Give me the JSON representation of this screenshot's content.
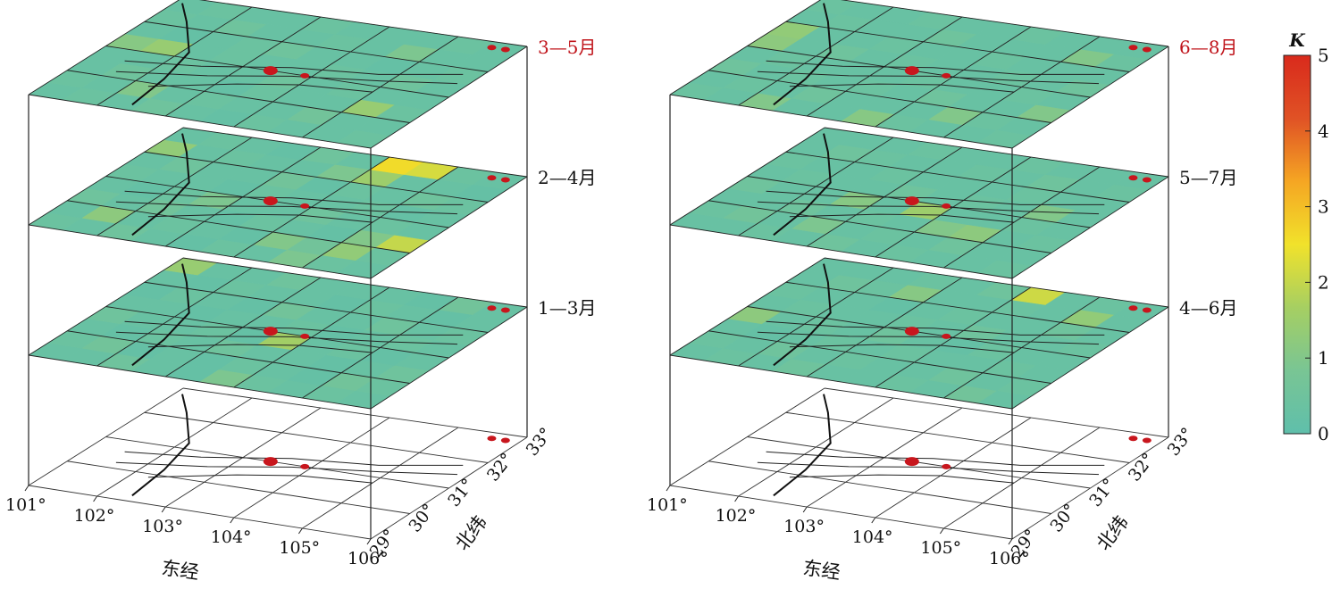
{
  "chart_data": {
    "type": "heatmap",
    "x_axis": {
      "label": "东经",
      "ticks": [
        "101°",
        "102°",
        "103°",
        "104°",
        "105°",
        "106°"
      ],
      "range": [
        101,
        106
      ]
    },
    "y_axis": {
      "label": "北纬",
      "ticks": [
        "29°",
        "30°",
        "31°",
        "32°",
        "33°"
      ],
      "range": [
        29,
        33
      ]
    },
    "colorbar": {
      "title": "K",
      "ticks": [
        "0",
        "1",
        "2",
        "3",
        "4",
        "5"
      ],
      "range": [
        0,
        5
      ],
      "colors": [
        "#5fbfab",
        "#79c594",
        "#a6cf62",
        "#f1e22b",
        "#f5a623",
        "#e05225",
        "#d92a1c"
      ]
    },
    "panels": [
      {
        "label": "1—3月",
        "highlight": false,
        "values": [
          [
            0.3,
            0.3,
            0.5,
            0.3,
            0.2,
            0.9,
            0.4,
            0.3,
            0.4,
            0.3
          ],
          [
            0.4,
            0.6,
            0.2,
            0.3,
            0.2,
            0.4,
            0.3,
            0.2,
            0.6,
            0.4
          ],
          [
            0.3,
            0.2,
            0.4,
            0.3,
            0.5,
            0.3,
            0.3,
            0.2,
            0.3,
            0.5
          ],
          [
            0.5,
            0.3,
            0.3,
            0.4,
            0.2,
            1.6,
            0.3,
            0.4,
            0.2,
            0.3
          ],
          [
            0.3,
            0.3,
            0.2,
            0.3,
            0.3,
            0.4,
            0.2,
            0.3,
            0.4,
            0.3
          ],
          [
            0.2,
            0.4,
            0.3,
            0.2,
            0.6,
            0.3,
            0.3,
            0.5,
            0.3,
            0.4
          ],
          [
            0.3,
            0.2,
            0.4,
            0.3,
            0.3,
            0.2,
            0.4,
            0.3,
            0.2,
            0.3
          ],
          [
            1.4,
            0.3,
            0.3,
            0.5,
            0.3,
            0.3,
            0.3,
            0.2,
            0.6,
            0.3
          ]
        ]
      },
      {
        "label": "2—4月",
        "highlight": false,
        "values": [
          [
            0.4,
            0.3,
            0.5,
            0.3,
            0.2,
            0.4,
            0.3,
            0.9,
            0.4,
            0.3
          ],
          [
            0.3,
            1.2,
            0.3,
            0.4,
            0.3,
            0.2,
            1.0,
            0.6,
            1.3,
            0.4
          ],
          [
            0.5,
            0.3,
            0.6,
            0.3,
            0.2,
            0.4,
            0.3,
            0.2,
            1.0,
            2.0
          ],
          [
            0.3,
            0.2,
            0.4,
            0.9,
            0.3,
            0.3,
            0.5,
            0.3,
            0.4,
            0.3
          ],
          [
            0.4,
            0.3,
            0.3,
            0.2,
            0.4,
            0.3,
            0.3,
            0.4,
            0.2,
            0.3
          ],
          [
            0.3,
            0.5,
            0.3,
            0.3,
            0.6,
            0.2,
            0.4,
            0.3,
            0.5,
            0.4
          ],
          [
            1.3,
            0.3,
            0.4,
            0.3,
            0.3,
            0.9,
            1.5,
            0.3,
            0.3,
            0.2
          ],
          [
            0.3,
            0.4,
            0.3,
            0.2,
            0.5,
            0.3,
            2.6,
            2.2,
            0.4,
            0.3
          ]
        ]
      },
      {
        "label": "3—5月",
        "highlight": true,
        "values": [
          [
            0.3,
            0.4,
            0.3,
            0.5,
            0.3,
            0.2,
            0.4,
            0.3,
            0.3,
            0.4
          ],
          [
            0.4,
            0.3,
            1.0,
            0.3,
            0.4,
            0.3,
            0.3,
            0.6,
            0.3,
            0.3
          ],
          [
            0.3,
            0.5,
            0.3,
            0.3,
            0.2,
            0.4,
            0.3,
            0.3,
            1.4,
            0.4
          ],
          [
            0.3,
            0.3,
            0.4,
            0.3,
            0.3,
            0.5,
            0.3,
            0.4,
            0.3,
            0.3
          ],
          [
            1.1,
            1.4,
            0.3,
            0.4,
            0.3,
            0.3,
            0.4,
            0.3,
            0.5,
            0.3
          ],
          [
            0.3,
            0.2,
            0.3,
            0.4,
            0.5,
            0.3,
            0.3,
            0.2,
            0.3,
            0.4
          ],
          [
            0.4,
            0.3,
            0.5,
            0.3,
            0.3,
            0.4,
            0.3,
            0.9,
            0.3,
            0.3
          ],
          [
            0.3,
            0.4,
            0.3,
            0.3,
            0.4,
            0.3,
            0.3,
            0.3,
            0.4,
            0.3
          ]
        ]
      },
      {
        "label": "4—6月",
        "highlight": false,
        "values": [
          [
            0.3,
            0.4,
            0.3,
            0.5,
            0.3,
            0.3,
            0.4,
            0.3,
            0.6,
            0.3
          ],
          [
            0.4,
            0.3,
            0.5,
            0.3,
            0.4,
            0.3,
            0.3,
            0.5,
            0.3,
            0.4
          ],
          [
            0.3,
            0.2,
            0.3,
            0.4,
            0.3,
            0.4,
            0.3,
            0.3,
            0.4,
            0.3
          ],
          [
            1.2,
            0.3,
            0.4,
            0.3,
            0.5,
            0.3,
            0.2,
            0.4,
            0.3,
            0.3
          ],
          [
            0.3,
            0.4,
            0.3,
            0.3,
            0.4,
            0.3,
            0.5,
            0.3,
            0.3,
            0.4
          ],
          [
            0.4,
            0.3,
            0.3,
            0.2,
            0.3,
            0.4,
            0.3,
            0.3,
            0.5,
            0.3
          ],
          [
            0.3,
            0.5,
            0.4,
            1.1,
            0.3,
            0.3,
            0.4,
            0.3,
            1.3,
            0.3
          ],
          [
            0.3,
            0.3,
            0.3,
            0.4,
            0.3,
            0.5,
            2.1,
            0.3,
            0.4,
            0.3
          ]
        ]
      },
      {
        "label": "5—7月",
        "highlight": false,
        "values": [
          [
            0.3,
            0.3,
            0.4,
            0.3,
            0.5,
            0.3,
            0.4,
            0.3,
            0.3,
            0.4
          ],
          [
            0.4,
            0.6,
            0.3,
            0.9,
            0.3,
            0.4,
            0.3,
            0.5,
            0.3,
            0.3
          ],
          [
            0.3,
            0.3,
            0.5,
            0.3,
            0.4,
            0.3,
            1.0,
            1.2,
            0.3,
            0.4
          ],
          [
            0.5,
            0.3,
            0.3,
            1.1,
            0.3,
            1.5,
            0.3,
            0.3,
            0.4,
            0.3
          ],
          [
            0.3,
            0.4,
            0.3,
            0.3,
            0.5,
            0.3,
            0.4,
            0.3,
            1.0,
            0.3
          ],
          [
            0.4,
            0.3,
            0.3,
            0.4,
            0.3,
            0.3,
            0.3,
            0.4,
            0.3,
            0.3
          ],
          [
            0.3,
            0.5,
            0.4,
            0.3,
            0.3,
            0.4,
            0.3,
            0.5,
            0.3,
            0.4
          ],
          [
            0.3,
            0.3,
            0.3,
            0.4,
            0.3,
            0.3,
            0.4,
            0.3,
            0.3,
            0.3
          ]
        ]
      },
      {
        "label": "6—8月",
        "highlight": true,
        "values": [
          [
            0.4,
            0.3,
            1.0,
            0.3,
            0.3,
            1.1,
            0.4,
            0.3,
            0.3,
            0.4
          ],
          [
            0.3,
            0.4,
            0.3,
            0.5,
            0.3,
            0.3,
            0.3,
            1.0,
            0.4,
            0.3
          ],
          [
            0.5,
            0.3,
            0.4,
            0.3,
            0.4,
            0.3,
            0.5,
            0.3,
            0.3,
            1.0
          ],
          [
            0.3,
            0.4,
            0.3,
            0.3,
            0.3,
            0.4,
            0.3,
            0.3,
            0.4,
            0.3
          ],
          [
            1.2,
            0.3,
            0.5,
            0.3,
            0.4,
            0.3,
            0.3,
            0.4,
            0.3,
            0.5
          ],
          [
            1.3,
            0.3,
            0.3,
            0.4,
            0.3,
            0.3,
            0.4,
            0.3,
            0.3,
            0.3
          ],
          [
            0.3,
            0.4,
            0.3,
            0.3,
            0.5,
            0.3,
            0.3,
            0.3,
            1.0,
            0.4
          ],
          [
            0.4,
            0.3,
            0.3,
            0.4,
            0.3,
            0.3,
            0.4,
            0.3,
            0.3,
            0.3
          ]
        ]
      }
    ]
  }
}
